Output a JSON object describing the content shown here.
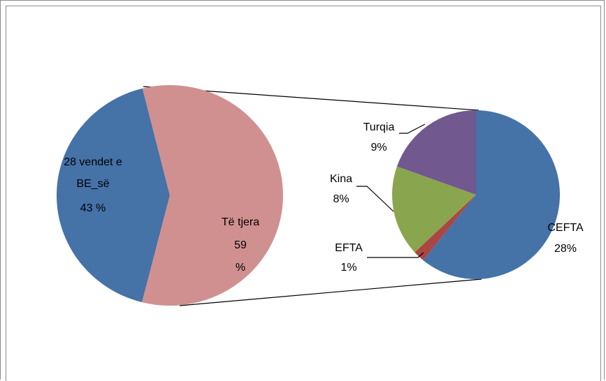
{
  "chart_data": [
    {
      "type": "pie",
      "title": "",
      "slices": [
        {
          "label_lines": [
            "28 vendet e",
            "BE_së",
            "43 %"
          ],
          "value": 43,
          "color": "#4572A7"
        },
        {
          "label_lines": [
            "Të tjera",
            "59",
            "%"
          ],
          "value": 59,
          "color": "#D09090"
        }
      ]
    },
    {
      "type": "pie",
      "title": "",
      "slices": [
        {
          "label_lines": [
            "CEFTA",
            "28%"
          ],
          "value": 28,
          "color": "#4572A7"
        },
        {
          "label_lines": [
            "EFTA",
            "1%"
          ],
          "value": 1,
          "color": "#AA4643"
        },
        {
          "label_lines": [
            "Kina",
            "8%"
          ],
          "value": 8,
          "color": "#89A54E"
        },
        {
          "label_lines": [
            "Turqia",
            "9%"
          ],
          "value": 9,
          "color": "#71588F"
        }
      ]
    }
  ]
}
